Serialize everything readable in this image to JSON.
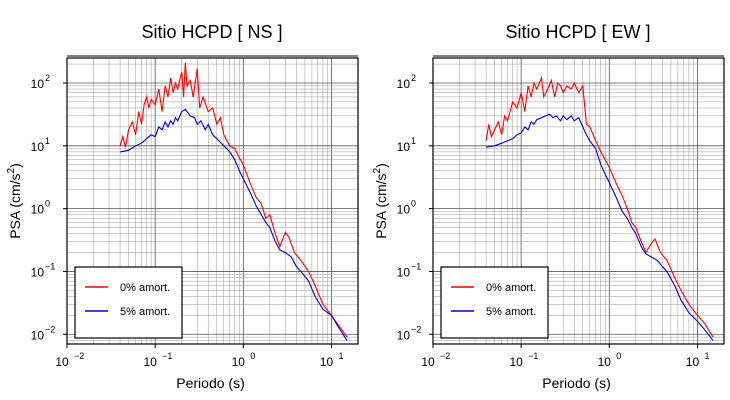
{
  "chart_data": [
    {
      "type": "line",
      "title": "Sitio HCPD [ NS ]",
      "xlabel": "Periodo (s)",
      "ylabel_main": "PSA (cm/s",
      "ylabel_sup": "2",
      "ylabel_end": ")",
      "xscale": "log",
      "yscale": "log",
      "xlim": [
        0.01,
        20
      ],
      "ylim": [
        0.007,
        250
      ],
      "grid": true,
      "legend_placement": "bottom-left",
      "xticks": [
        {
          "base": "10",
          "exp": "−2"
        },
        {
          "base": "10",
          "exp": "−1"
        },
        {
          "base": "10",
          "exp": "0"
        },
        {
          "base": "10",
          "exp": "1"
        }
      ],
      "yticks": [
        {
          "base": "10",
          "exp": "−2"
        },
        {
          "base": "10",
          "exp": "−1"
        },
        {
          "base": "10",
          "exp": "0"
        },
        {
          "base": "10",
          "exp": "1"
        },
        {
          "base": "10",
          "exp": "2"
        }
      ],
      "series": [
        {
          "name": "0% amort.",
          "color": "#ff0000",
          "x": [
            0.04,
            0.043,
            0.046,
            0.05,
            0.055,
            0.06,
            0.065,
            0.07,
            0.075,
            0.08,
            0.085,
            0.09,
            0.1,
            0.11,
            0.12,
            0.13,
            0.14,
            0.15,
            0.16,
            0.17,
            0.18,
            0.2,
            0.21,
            0.22,
            0.23,
            0.25,
            0.27,
            0.3,
            0.32,
            0.35,
            0.4,
            0.45,
            0.5,
            0.55,
            0.6,
            0.7,
            0.8,
            0.9,
            1.0,
            1.2,
            1.4,
            1.6,
            1.8,
            2.0,
            2.3,
            2.6,
            3.0,
            3.3,
            3.8,
            4.5,
            5.5,
            6.5,
            8,
            10,
            12,
            15
          ],
          "y": [
            10,
            14,
            9.5,
            18,
            24,
            15,
            35,
            22,
            45,
            60,
            40,
            55,
            45,
            80,
            35,
            90,
            60,
            120,
            70,
            100,
            80,
            150,
            60,
            210,
            90,
            110,
            60,
            170,
            40,
            60,
            35,
            40,
            22,
            28,
            15,
            10,
            9,
            6.5,
            5,
            2.5,
            1.5,
            1.2,
            0.7,
            0.8,
            0.4,
            0.25,
            0.42,
            0.35,
            0.2,
            0.15,
            0.1,
            0.06,
            0.03,
            0.02,
            0.014,
            0.009
          ]
        },
        {
          "name": "5% amort.",
          "color": "#0000dd",
          "x": [
            0.04,
            0.05,
            0.06,
            0.07,
            0.08,
            0.09,
            0.1,
            0.11,
            0.12,
            0.13,
            0.14,
            0.15,
            0.16,
            0.17,
            0.18,
            0.2,
            0.22,
            0.25,
            0.28,
            0.3,
            0.33,
            0.37,
            0.4,
            0.45,
            0.5,
            0.6,
            0.7,
            0.8,
            0.9,
            1.0,
            1.2,
            1.4,
            1.6,
            1.8,
            2.0,
            2.3,
            2.6,
            3.0,
            3.5,
            4.0,
            4.5,
            5.5,
            6.5,
            8,
            10,
            12,
            15
          ],
          "y": [
            8,
            8.5,
            10,
            11,
            13,
            15,
            14,
            20,
            18,
            24,
            20,
            25,
            22,
            28,
            25,
            35,
            38,
            30,
            28,
            22,
            25,
            18,
            22,
            15,
            13,
            10,
            8,
            6,
            4,
            3,
            1.8,
            1.1,
            0.8,
            0.6,
            0.5,
            0.3,
            0.22,
            0.2,
            0.17,
            0.12,
            0.1,
            0.07,
            0.04,
            0.025,
            0.02,
            0.013,
            0.008
          ]
        }
      ]
    },
    {
      "type": "line",
      "title": "Sitio HCPD [ EW ]",
      "xlabel": "Periodo (s)",
      "ylabel_main": "PSA (cm/s",
      "ylabel_sup": "2",
      "ylabel_end": ")",
      "xscale": "log",
      "yscale": "log",
      "xlim": [
        0.01,
        20
      ],
      "ylim": [
        0.007,
        250
      ],
      "grid": true,
      "legend_placement": "bottom-left",
      "xticks": [
        {
          "base": "10",
          "exp": "−2"
        },
        {
          "base": "10",
          "exp": "−1"
        },
        {
          "base": "10",
          "exp": "0"
        },
        {
          "base": "10",
          "exp": "1"
        }
      ],
      "yticks": [
        {
          "base": "10",
          "exp": "−2"
        },
        {
          "base": "10",
          "exp": "−1"
        },
        {
          "base": "10",
          "exp": "0"
        },
        {
          "base": "10",
          "exp": "1"
        },
        {
          "base": "10",
          "exp": "2"
        }
      ],
      "series": [
        {
          "name": "0% amort.",
          "color": "#ff0000",
          "x": [
            0.04,
            0.043,
            0.046,
            0.05,
            0.055,
            0.06,
            0.065,
            0.07,
            0.075,
            0.08,
            0.09,
            0.1,
            0.11,
            0.12,
            0.13,
            0.14,
            0.15,
            0.17,
            0.18,
            0.2,
            0.22,
            0.24,
            0.26,
            0.28,
            0.3,
            0.33,
            0.37,
            0.4,
            0.45,
            0.5,
            0.55,
            0.6,
            0.7,
            0.8,
            0.9,
            1.0,
            1.2,
            1.4,
            1.6,
            1.8,
            2.0,
            2.3,
            2.6,
            3.0,
            3.3,
            3.8,
            4.5,
            5.5,
            6.5,
            8,
            10,
            12,
            15
          ],
          "y": [
            12,
            22,
            14,
            18,
            24,
            15,
            30,
            25,
            35,
            50,
            40,
            70,
            35,
            90,
            60,
            100,
            80,
            120,
            60,
            80,
            110,
            60,
            100,
            90,
            70,
            90,
            80,
            100,
            70,
            90,
            22,
            20,
            12,
            8,
            6,
            4.5,
            2.5,
            1.6,
            1.0,
            0.6,
            0.5,
            0.3,
            0.2,
            0.28,
            0.33,
            0.2,
            0.15,
            0.08,
            0.05,
            0.03,
            0.02,
            0.015,
            0.009
          ]
        },
        {
          "name": "5% amort.",
          "color": "#0000dd",
          "x": [
            0.04,
            0.05,
            0.06,
            0.07,
            0.08,
            0.09,
            0.1,
            0.11,
            0.12,
            0.13,
            0.14,
            0.15,
            0.17,
            0.19,
            0.21,
            0.23,
            0.25,
            0.28,
            0.3,
            0.33,
            0.37,
            0.4,
            0.45,
            0.5,
            0.55,
            0.6,
            0.7,
            0.8,
            0.9,
            1.0,
            1.2,
            1.4,
            1.6,
            1.8,
            2.0,
            2.3,
            2.6,
            3.0,
            3.5,
            4.0,
            4.5,
            5.5,
            6.5,
            8,
            10,
            12,
            15
          ],
          "y": [
            9.5,
            10,
            11,
            12,
            13,
            15,
            16,
            20,
            18,
            24,
            22,
            26,
            28,
            30,
            32,
            28,
            30,
            25,
            30,
            26,
            30,
            25,
            28,
            20,
            15,
            12,
            9,
            5,
            3.5,
            2.6,
            1.5,
            0.9,
            0.7,
            0.5,
            0.4,
            0.25,
            0.19,
            0.17,
            0.15,
            0.12,
            0.1,
            0.06,
            0.035,
            0.022,
            0.016,
            0.012,
            0.008
          ]
        }
      ]
    }
  ]
}
